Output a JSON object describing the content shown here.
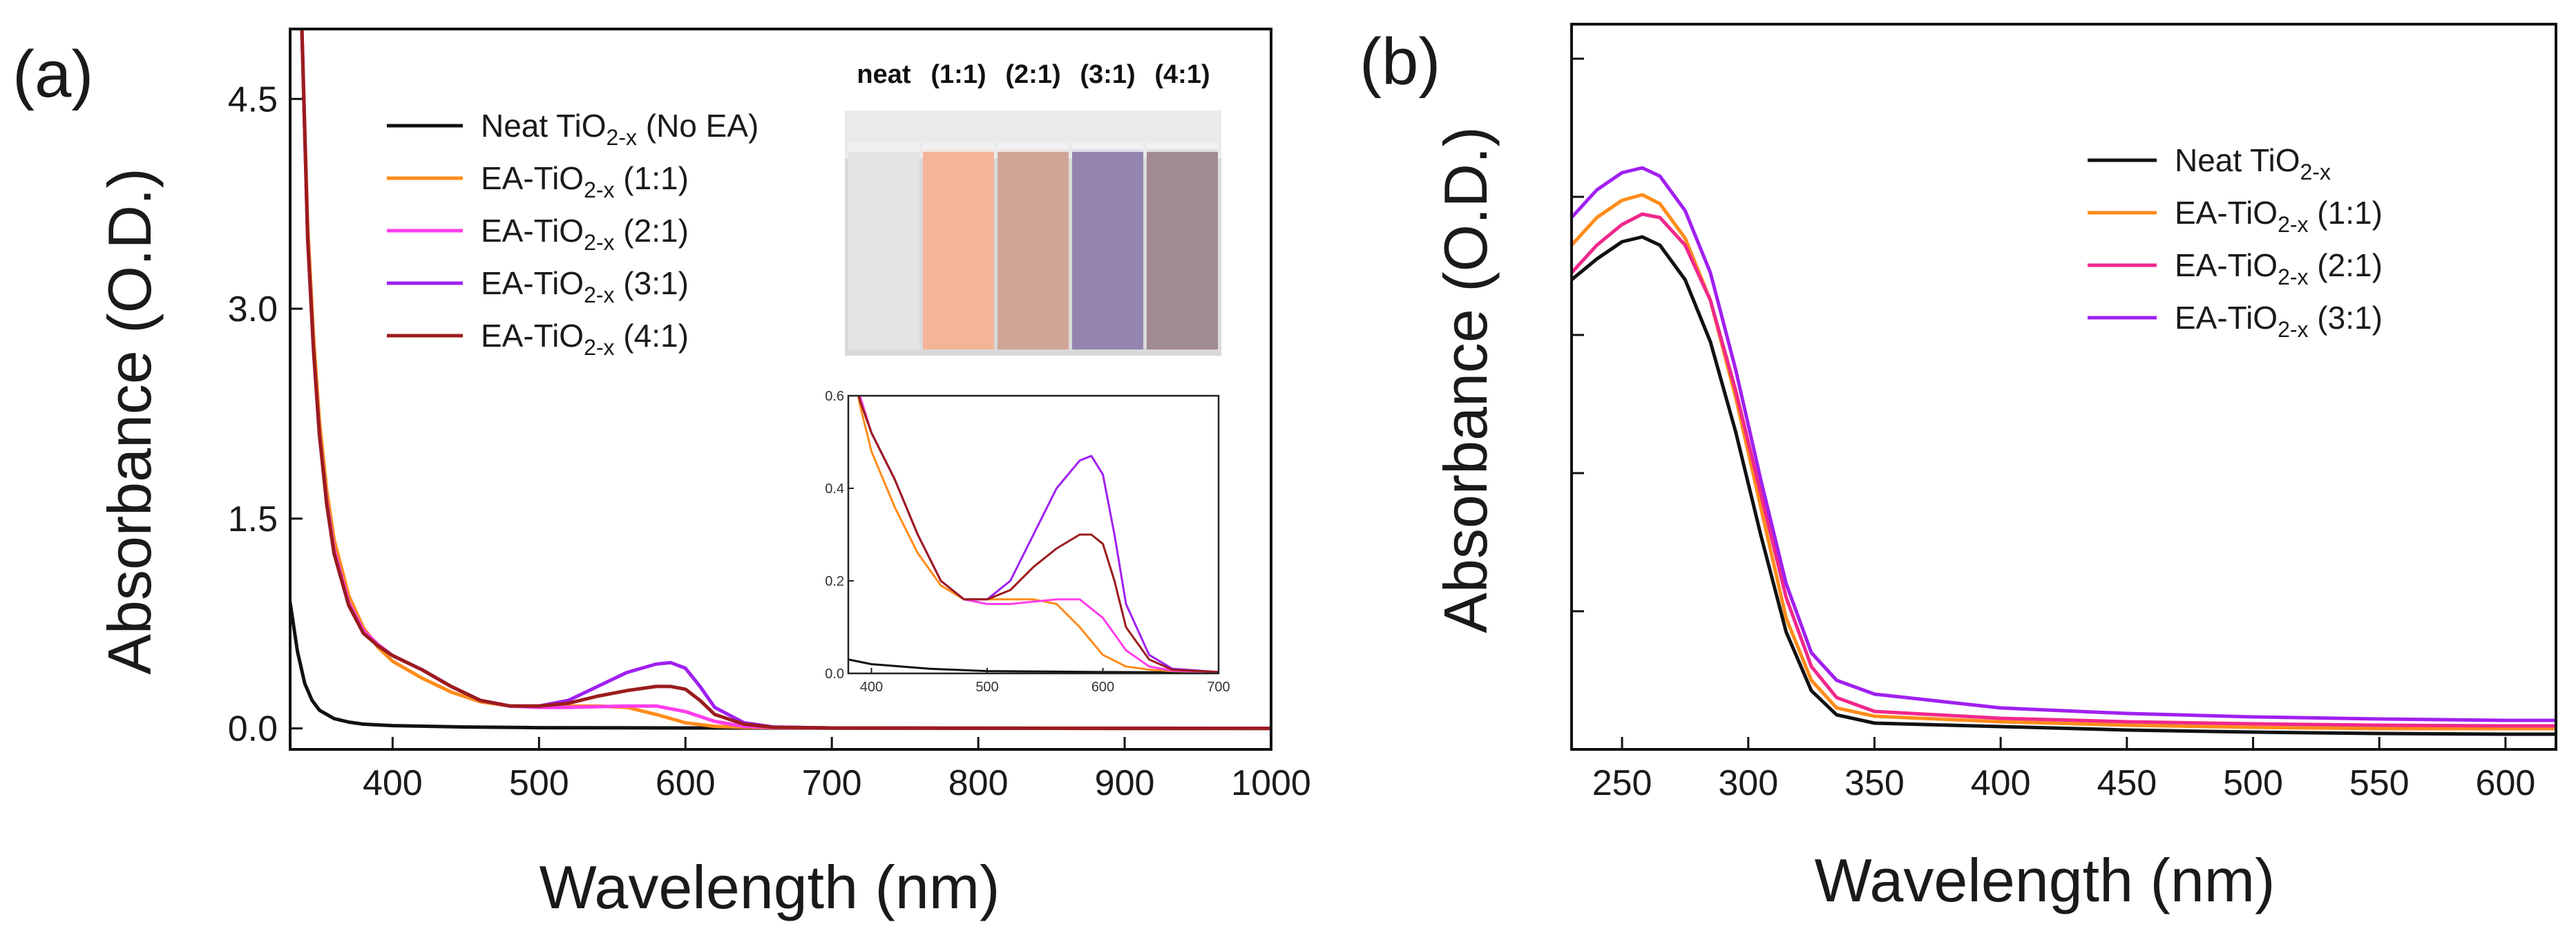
{
  "chart_data": [
    {
      "panel": "(a)",
      "type": "line",
      "xlabel": "Wavelength (nm)",
      "ylabel": "Absorbance (O.D.)",
      "xlim": [
        330,
        1000
      ],
      "ylim": [
        -0.15,
        5.0
      ],
      "xticks": [
        400,
        500,
        600,
        700,
        800,
        900,
        1000
      ],
      "yticks": [
        0.0,
        1.5,
        3.0,
        4.5
      ],
      "ytick_labels": [
        "0.0",
        "1.5",
        "3.0",
        "4.5"
      ],
      "legend_position": "top-left",
      "series": [
        {
          "name": "Neat TiO2-x (No EA)",
          "label_main": "Neat TiO",
          "label_sub": "2-x",
          "label_tail": " (No EA)",
          "color": "#111111",
          "x": [
            330,
            335,
            340,
            345,
            350,
            360,
            370,
            380,
            400,
            450,
            500,
            600,
            700,
            800,
            900,
            1000
          ],
          "y": [
            0.9,
            0.55,
            0.32,
            0.2,
            0.13,
            0.07,
            0.045,
            0.03,
            0.02,
            0.01,
            0.005,
            0.003,
            0.002,
            0.001,
            0.001,
            0.0
          ]
        },
        {
          "name": "EA-TiO2-x (1:1)",
          "label_main": "EA-TiO",
          "label_sub": "2-x",
          "label_tail": " (1:1)",
          "color": "#FF8C1A",
          "x": [
            338,
            342,
            346,
            350,
            355,
            360,
            370,
            380,
            390,
            400,
            420,
            440,
            460,
            480,
            500,
            520,
            540,
            560,
            580,
            600,
            620,
            640,
            660,
            700,
            800,
            900,
            1000
          ],
          "y": [
            5.0,
            3.6,
            2.8,
            2.2,
            1.7,
            1.35,
            0.95,
            0.72,
            0.58,
            0.48,
            0.36,
            0.26,
            0.19,
            0.16,
            0.16,
            0.16,
            0.16,
            0.15,
            0.1,
            0.04,
            0.015,
            0.008,
            0.005,
            0.003,
            0.001,
            0.0,
            0.0
          ]
        },
        {
          "name": "EA-TiO2-x (2:1)",
          "label_main": "EA-TiO",
          "label_sub": "2-x",
          "label_tail": " (2:1)",
          "color": "#FF3DEB",
          "x": [
            338,
            342,
            346,
            350,
            355,
            360,
            370,
            380,
            390,
            400,
            420,
            440,
            460,
            480,
            500,
            520,
            540,
            560,
            580,
            600,
            620,
            640,
            660,
            700,
            800,
            900,
            1000
          ],
          "y": [
            5.0,
            3.5,
            2.7,
            2.1,
            1.62,
            1.28,
            0.9,
            0.7,
            0.6,
            0.52,
            0.42,
            0.3,
            0.2,
            0.16,
            0.15,
            0.15,
            0.155,
            0.16,
            0.16,
            0.12,
            0.05,
            0.015,
            0.006,
            0.003,
            0.001,
            0.0,
            0.0
          ]
        },
        {
          "name": "EA-TiO2-x (3:1)",
          "label_main": "EA-TiO",
          "label_sub": "2-x",
          "label_tail": " (3:1)",
          "color": "#A020F0",
          "x": [
            338,
            342,
            346,
            350,
            355,
            360,
            370,
            380,
            390,
            400,
            420,
            440,
            460,
            480,
            500,
            520,
            540,
            560,
            580,
            590,
            600,
            610,
            620,
            640,
            660,
            700,
            800,
            900,
            1000
          ],
          "y": [
            5.0,
            3.5,
            2.7,
            2.1,
            1.6,
            1.25,
            0.88,
            0.68,
            0.59,
            0.52,
            0.42,
            0.3,
            0.2,
            0.16,
            0.16,
            0.2,
            0.3,
            0.4,
            0.46,
            0.47,
            0.43,
            0.3,
            0.15,
            0.04,
            0.01,
            0.003,
            0.001,
            0.0,
            0.0
          ]
        },
        {
          "name": "EA-TiO2-x (4:1)",
          "label_main": "EA-TiO",
          "label_sub": "2-x",
          "label_tail": " (4:1)",
          "color": "#9B1C1C",
          "x": [
            338,
            342,
            346,
            350,
            355,
            360,
            370,
            380,
            390,
            400,
            420,
            440,
            460,
            480,
            500,
            520,
            540,
            560,
            580,
            590,
            600,
            610,
            620,
            640,
            660,
            700,
            800,
            900,
            1000
          ],
          "y": [
            5.0,
            3.5,
            2.7,
            2.1,
            1.6,
            1.25,
            0.88,
            0.68,
            0.59,
            0.52,
            0.42,
            0.3,
            0.2,
            0.16,
            0.16,
            0.18,
            0.23,
            0.27,
            0.3,
            0.3,
            0.28,
            0.2,
            0.1,
            0.03,
            0.008,
            0.003,
            0.001,
            0.0,
            0.0
          ]
        }
      ],
      "inset": {
        "type": "line",
        "xlim": [
          380,
          700
        ],
        "ylim": [
          0.0,
          0.6
        ],
        "xticks": [
          400,
          500,
          600,
          700
        ],
        "yticks": [
          0.0,
          0.2,
          0.4,
          0.6
        ],
        "ytick_labels": [
          "0.0",
          "0.2",
          "0.4",
          "0.6"
        ]
      },
      "photo_labels": [
        "neat",
        "(1:1)",
        "(2:1)",
        "(3:1)",
        "(4:1)"
      ],
      "photo_colors": [
        "#E4E4E2",
        "#F4B497",
        "#D1A596",
        "#9385AE",
        "#A08C91"
      ]
    },
    {
      "panel": "(b)",
      "type": "line",
      "xlabel": "Wavelength (nm)",
      "ylabel": "Absorbance (O.D.)",
      "xlim": [
        230,
        620
      ],
      "ylim": [
        0.0,
        1.05
      ],
      "xticks": [
        250,
        300,
        350,
        400,
        450,
        500,
        550,
        600
      ],
      "yticks": [
        0.2,
        0.4,
        0.6,
        0.8,
        1.0
      ],
      "legend_position": "top-right",
      "series": [
        {
          "name": "Neat TiO2-x",
          "label_main": "Neat TiO",
          "label_sub": "2-x",
          "label_tail": "",
          "color": "#111111",
          "x": [
            230,
            240,
            250,
            258,
            265,
            275,
            285,
            295,
            305,
            315,
            325,
            335,
            350,
            400,
            450,
            500,
            550,
            600,
            620
          ],
          "y": [
            0.68,
            0.71,
            0.735,
            0.742,
            0.73,
            0.68,
            0.59,
            0.46,
            0.31,
            0.17,
            0.085,
            0.05,
            0.038,
            0.033,
            0.028,
            0.025,
            0.023,
            0.022,
            0.022
          ]
        },
        {
          "name": "EA-TiO2-x (1:1)",
          "label_main": "EA-TiO",
          "label_sub": "2-x",
          "label_tail": " (1:1)",
          "color": "#FF8C1A",
          "x": [
            230,
            240,
            250,
            258,
            265,
            275,
            285,
            295,
            305,
            315,
            325,
            335,
            350,
            400,
            450,
            500,
            550,
            600,
            620
          ],
          "y": [
            0.73,
            0.77,
            0.795,
            0.803,
            0.79,
            0.74,
            0.65,
            0.51,
            0.35,
            0.19,
            0.1,
            0.06,
            0.048,
            0.04,
            0.035,
            0.032,
            0.03,
            0.03,
            0.03
          ]
        },
        {
          "name": "EA-TiO2-x (2:1)",
          "label_main": "EA-TiO",
          "label_sub": "2-x",
          "label_tail": " (2:1)",
          "color": "#F0288C",
          "x": [
            230,
            240,
            250,
            258,
            265,
            275,
            285,
            295,
            305,
            315,
            325,
            335,
            350,
            400,
            450,
            500,
            550,
            600,
            620
          ],
          "y": [
            0.69,
            0.73,
            0.76,
            0.775,
            0.77,
            0.73,
            0.65,
            0.52,
            0.37,
            0.22,
            0.12,
            0.075,
            0.055,
            0.045,
            0.04,
            0.037,
            0.035,
            0.034,
            0.034
          ]
        },
        {
          "name": "EA-TiO2-x (3:1)",
          "label_main": "EA-TiO",
          "label_sub": "2-x",
          "label_tail": " (3:1)",
          "color": "#A020F0",
          "x": [
            230,
            240,
            250,
            258,
            265,
            275,
            285,
            295,
            305,
            315,
            325,
            335,
            350,
            400,
            450,
            500,
            550,
            600,
            620
          ],
          "y": [
            0.77,
            0.81,
            0.835,
            0.842,
            0.83,
            0.78,
            0.69,
            0.55,
            0.39,
            0.24,
            0.14,
            0.1,
            0.08,
            0.06,
            0.052,
            0.047,
            0.044,
            0.042,
            0.042
          ]
        }
      ]
    }
  ]
}
